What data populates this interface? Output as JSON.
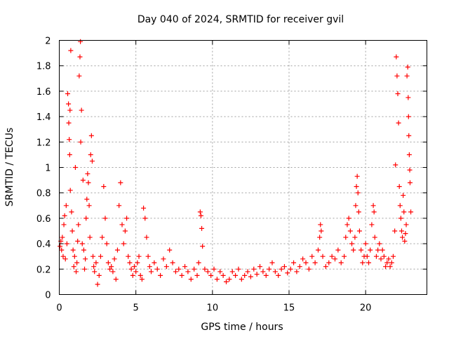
{
  "chart_data": {
    "type": "scatter",
    "title": "Day 040 of 2024, SRMTID for receiver gvil",
    "xlabel": "GPS time / hours",
    "ylabel": "SRMTID / TECUs",
    "xlim": [
      0,
      24
    ],
    "ylim": [
      0,
      2
    ],
    "xticks": [
      0,
      5,
      10,
      15,
      20
    ],
    "xtick_labels": [
      "0",
      "5",
      "10",
      "15",
      "20"
    ],
    "yticks": [
      0,
      0.2,
      0.4,
      0.6,
      0.8,
      1,
      1.2,
      1.4,
      1.6,
      1.8,
      2
    ],
    "ytick_labels": [
      "0",
      "0.2",
      "0.4",
      "0.6",
      "0.8",
      "1",
      "1.2",
      "1.4",
      "1.6",
      "1.8",
      "2"
    ],
    "grid": true,
    "marker": "+",
    "color": "#ff0000",
    "series": [
      {
        "name": "SRMTID",
        "points": [
          [
            0.05,
            0.38
          ],
          [
            0.1,
            0.42
          ],
          [
            0.15,
            0.35
          ],
          [
            0.2,
            0.45
          ],
          [
            0.25,
            0.3
          ],
          [
            0.3,
            0.55
          ],
          [
            0.35,
            0.62
          ],
          [
            0.4,
            0.28
          ],
          [
            0.45,
            0.7
          ],
          [
            0.5,
            0.4
          ],
          [
            0.55,
            1.58
          ],
          [
            0.6,
            1.5
          ],
          [
            0.62,
            1.35
          ],
          [
            0.65,
            1.22
          ],
          [
            0.68,
            1.1
          ],
          [
            0.7,
            1.45
          ],
          [
            0.72,
            0.82
          ],
          [
            0.75,
            1.92
          ],
          [
            0.8,
            0.65
          ],
          [
            0.85,
            0.5
          ],
          [
            0.9,
            0.35
          ],
          [
            0.95,
            0.22
          ],
          [
            1.0,
            0.3
          ],
          [
            1.05,
            1.0
          ],
          [
            1.1,
            0.18
          ],
          [
            1.15,
            0.25
          ],
          [
            1.2,
            0.42
          ],
          [
            1.25,
            0.55
          ],
          [
            1.3,
            1.72
          ],
          [
            1.35,
            1.87
          ],
          [
            1.38,
            1.99
          ],
          [
            1.4,
            1.2
          ],
          [
            1.45,
            1.45
          ],
          [
            1.5,
            0.4
          ],
          [
            1.55,
            0.9
          ],
          [
            1.6,
            0.35
          ],
          [
            1.65,
            0.2
          ],
          [
            1.7,
            0.28
          ],
          [
            1.75,
            0.6
          ],
          [
            1.8,
            0.75
          ],
          [
            1.85,
            0.95
          ],
          [
            1.9,
            0.88
          ],
          [
            1.95,
            0.7
          ],
          [
            2.0,
            0.45
          ],
          [
            2.05,
            1.1
          ],
          [
            2.1,
            1.25
          ],
          [
            2.15,
            1.05
          ],
          [
            2.2,
            0.3
          ],
          [
            2.25,
            0.22
          ],
          [
            2.3,
            0.18
          ],
          [
            2.4,
            0.25
          ],
          [
            2.5,
            0.08
          ],
          [
            2.6,
            0.15
          ],
          [
            2.7,
            0.3
          ],
          [
            2.8,
            0.45
          ],
          [
            2.9,
            0.85
          ],
          [
            3.0,
            0.6
          ],
          [
            3.1,
            0.4
          ],
          [
            3.2,
            0.25
          ],
          [
            3.3,
            0.2
          ],
          [
            3.4,
            0.22
          ],
          [
            3.5,
            0.18
          ],
          [
            3.6,
            0.28
          ],
          [
            3.7,
            0.12
          ],
          [
            3.8,
            0.35
          ],
          [
            3.9,
            0.7
          ],
          [
            4.0,
            0.88
          ],
          [
            4.1,
            0.55
          ],
          [
            4.2,
            0.4
          ],
          [
            4.3,
            0.5
          ],
          [
            4.4,
            0.6
          ],
          [
            4.5,
            0.3
          ],
          [
            4.6,
            0.25
          ],
          [
            4.7,
            0.2
          ],
          [
            4.8,
            0.15
          ],
          [
            4.9,
            0.22
          ],
          [
            5.0,
            0.18
          ],
          [
            5.1,
            0.25
          ],
          [
            5.2,
            0.3
          ],
          [
            5.3,
            0.15
          ],
          [
            5.4,
            0.12
          ],
          [
            5.5,
            0.68
          ],
          [
            5.6,
            0.6
          ],
          [
            5.7,
            0.45
          ],
          [
            5.8,
            0.3
          ],
          [
            5.9,
            0.22
          ],
          [
            6.0,
            0.18
          ],
          [
            6.2,
            0.25
          ],
          [
            6.4,
            0.2
          ],
          [
            6.6,
            0.15
          ],
          [
            6.8,
            0.28
          ],
          [
            7.0,
            0.22
          ],
          [
            7.2,
            0.35
          ],
          [
            7.4,
            0.25
          ],
          [
            7.6,
            0.18
          ],
          [
            7.8,
            0.2
          ],
          [
            8.0,
            0.15
          ],
          [
            8.2,
            0.22
          ],
          [
            8.4,
            0.18
          ],
          [
            8.6,
            0.12
          ],
          [
            8.8,
            0.2
          ],
          [
            9.0,
            0.15
          ],
          [
            9.1,
            0.25
          ],
          [
            9.2,
            0.65
          ],
          [
            9.25,
            0.62
          ],
          [
            9.3,
            0.52
          ],
          [
            9.35,
            0.38
          ],
          [
            9.5,
            0.2
          ],
          [
            9.7,
            0.18
          ],
          [
            9.9,
            0.15
          ],
          [
            10.1,
            0.2
          ],
          [
            10.3,
            0.12
          ],
          [
            10.5,
            0.18
          ],
          [
            10.7,
            0.15
          ],
          [
            10.9,
            0.1
          ],
          [
            11.1,
            0.12
          ],
          [
            11.3,
            0.18
          ],
          [
            11.5,
            0.15
          ],
          [
            11.7,
            0.2
          ],
          [
            11.9,
            0.12
          ],
          [
            12.1,
            0.15
          ],
          [
            12.3,
            0.18
          ],
          [
            12.5,
            0.14
          ],
          [
            12.7,
            0.2
          ],
          [
            12.9,
            0.16
          ],
          [
            13.1,
            0.22
          ],
          [
            13.3,
            0.18
          ],
          [
            13.5,
            0.15
          ],
          [
            13.7,
            0.2
          ],
          [
            13.9,
            0.25
          ],
          [
            14.1,
            0.18
          ],
          [
            14.3,
            0.15
          ],
          [
            14.5,
            0.2
          ],
          [
            14.7,
            0.22
          ],
          [
            14.9,
            0.17
          ],
          [
            15.1,
            0.2
          ],
          [
            15.3,
            0.25
          ],
          [
            15.5,
            0.18
          ],
          [
            15.7,
            0.22
          ],
          [
            15.9,
            0.28
          ],
          [
            16.1,
            0.25
          ],
          [
            16.3,
            0.2
          ],
          [
            16.5,
            0.3
          ],
          [
            16.7,
            0.25
          ],
          [
            16.9,
            0.35
          ],
          [
            17.0,
            0.45
          ],
          [
            17.05,
            0.55
          ],
          [
            17.1,
            0.5
          ],
          [
            17.2,
            0.3
          ],
          [
            17.4,
            0.22
          ],
          [
            17.6,
            0.25
          ],
          [
            17.8,
            0.3
          ],
          [
            18.0,
            0.28
          ],
          [
            18.2,
            0.35
          ],
          [
            18.4,
            0.25
          ],
          [
            18.6,
            0.3
          ],
          [
            18.7,
            0.45
          ],
          [
            18.8,
            0.55
          ],
          [
            18.9,
            0.6
          ],
          [
            19.0,
            0.5
          ],
          [
            19.1,
            0.4
          ],
          [
            19.2,
            0.35
          ],
          [
            19.3,
            0.45
          ],
          [
            19.35,
            0.7
          ],
          [
            19.4,
            0.85
          ],
          [
            19.45,
            0.93
          ],
          [
            19.5,
            0.8
          ],
          [
            19.55,
            0.65
          ],
          [
            19.6,
            0.5
          ],
          [
            19.7,
            0.35
          ],
          [
            19.8,
            0.25
          ],
          [
            19.9,
            0.3
          ],
          [
            20.0,
            0.4
          ],
          [
            20.1,
            0.3
          ],
          [
            20.2,
            0.25
          ],
          [
            20.3,
            0.35
          ],
          [
            20.4,
            0.55
          ],
          [
            20.5,
            0.7
          ],
          [
            20.55,
            0.65
          ],
          [
            20.6,
            0.45
          ],
          [
            20.7,
            0.3
          ],
          [
            20.8,
            0.35
          ],
          [
            20.9,
            0.4
          ],
          [
            21.0,
            0.28
          ],
          [
            21.1,
            0.35
          ],
          [
            21.2,
            0.3
          ],
          [
            21.3,
            0.22
          ],
          [
            21.4,
            0.25
          ],
          [
            21.5,
            0.28
          ],
          [
            21.6,
            0.22
          ],
          [
            21.7,
            0.25
          ],
          [
            21.8,
            0.3
          ],
          [
            21.9,
            0.5
          ],
          [
            21.95,
            1.02
          ],
          [
            22.0,
            1.87
          ],
          [
            22.05,
            1.72
          ],
          [
            22.1,
            1.58
          ],
          [
            22.15,
            1.35
          ],
          [
            22.2,
            0.85
          ],
          [
            22.25,
            0.7
          ],
          [
            22.3,
            0.6
          ],
          [
            22.35,
            0.5
          ],
          [
            22.4,
            0.45
          ],
          [
            22.45,
            0.78
          ],
          [
            22.5,
            0.65
          ],
          [
            22.55,
            0.42
          ],
          [
            22.6,
            0.48
          ],
          [
            22.65,
            0.55
          ],
          [
            22.7,
            1.72
          ],
          [
            22.75,
            1.79
          ],
          [
            22.78,
            1.55
          ],
          [
            22.8,
            1.4
          ],
          [
            22.82,
            1.25
          ],
          [
            22.85,
            1.1
          ],
          [
            22.88,
            0.98
          ],
          [
            22.9,
            0.88
          ],
          [
            22.95,
            0.65
          ]
        ]
      }
    ]
  }
}
